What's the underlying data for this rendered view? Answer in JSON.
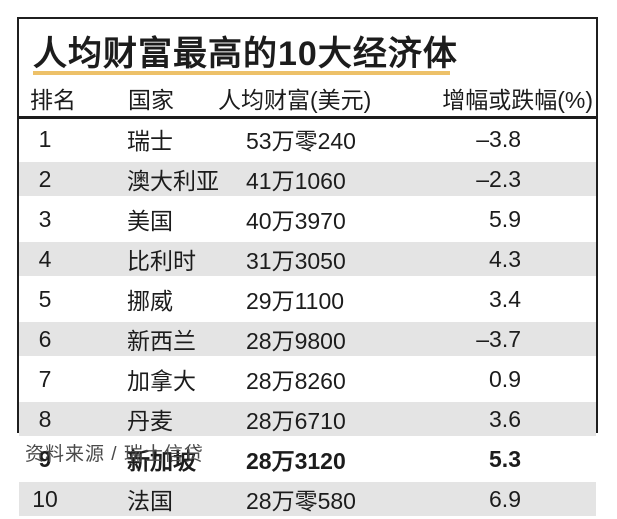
{
  "page": {
    "background": "#ffffff"
  },
  "panel": {
    "border_color": "#1f1f1f",
    "accent_color": "#edc169",
    "alt_row_color": "#e4e4e4"
  },
  "chart_data": {
    "type": "table",
    "title": "人均财富最高的10大经济体",
    "columns": [
      "排名",
      "国家",
      "人均财富(美元)",
      "增幅或跌幅(%)"
    ],
    "rows": [
      {
        "rank": "1",
        "country": "瑞士",
        "wealth_display": "53万零240",
        "wealth_usd": 530240,
        "change_display": "–3.8",
        "change_pct": -3.8,
        "highlight": false
      },
      {
        "rank": "2",
        "country": "澳大利亚",
        "wealth_display": "41万1060",
        "wealth_usd": 411060,
        "change_display": "–2.3",
        "change_pct": -2.3,
        "highlight": false
      },
      {
        "rank": "3",
        "country": "美国",
        "wealth_display": "40万3970",
        "wealth_usd": 403970,
        "change_display": "5.9",
        "change_pct": 5.9,
        "highlight": false
      },
      {
        "rank": "4",
        "country": "比利时",
        "wealth_display": "31万3050",
        "wealth_usd": 313050,
        "change_display": "4.3",
        "change_pct": 4.3,
        "highlight": false
      },
      {
        "rank": "5",
        "country": "挪威",
        "wealth_display": "29万1100",
        "wealth_usd": 291100,
        "change_display": "3.4",
        "change_pct": 3.4,
        "highlight": false
      },
      {
        "rank": "6",
        "country": "新西兰",
        "wealth_display": "28万9800",
        "wealth_usd": 289800,
        "change_display": "–3.7",
        "change_pct": -3.7,
        "highlight": false
      },
      {
        "rank": "7",
        "country": "加拿大",
        "wealth_display": "28万8260",
        "wealth_usd": 288260,
        "change_display": "0.9",
        "change_pct": 0.9,
        "highlight": false
      },
      {
        "rank": "8",
        "country": "丹麦",
        "wealth_display": "28万6710",
        "wealth_usd": 286710,
        "change_display": "3.6",
        "change_pct": 3.6,
        "highlight": false
      },
      {
        "rank": "9",
        "country": "新加坡",
        "wealth_display": "28万3120",
        "wealth_usd": 283120,
        "change_display": "5.3",
        "change_pct": 5.3,
        "highlight": true
      },
      {
        "rank": "10",
        "country": "法国",
        "wealth_display": "28万零580",
        "wealth_usd": 280580,
        "change_display": "6.9",
        "change_pct": 6.9,
        "highlight": false
      }
    ],
    "source": "资料来源 / 瑞士信贷"
  }
}
